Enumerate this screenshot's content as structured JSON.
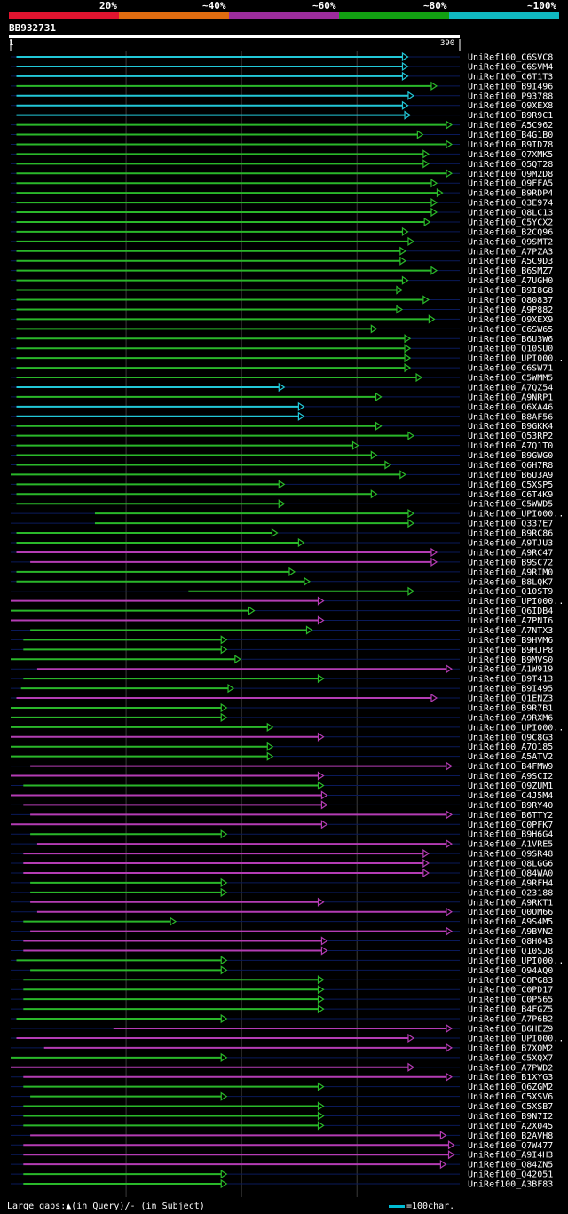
{
  "legend": {
    "segments": [
      {
        "label": "20%",
        "color": "#e0142f"
      },
      {
        "label": "~40%",
        "color": "#e06c10"
      },
      {
        "label": "~60%",
        "color": "#9c2c9c"
      },
      {
        "label": "~80%",
        "color": "#12a012"
      },
      {
        "label": "~100%",
        "color": "#10b8c0"
      }
    ]
  },
  "query": {
    "id": "BB932731",
    "start": "1",
    "end": "390"
  },
  "footer": {
    "gaps_legend": "Large gaps:▲(in Query)/- (in Subject)",
    "scale_legend": "=100char."
  },
  "colors": {
    "cyan": "#22c8d8",
    "green": "#2ab82a",
    "magenta": "#b43cb4",
    "track": "#0a1a5a",
    "grid": "#3a3a3a"
  },
  "chart_data": {
    "type": "alignment",
    "query_length": 390,
    "gap_markers": {
      "query": "▲",
      "subject": "-"
    },
    "hits": [
      {
        "name": "UniRef100_C6SVC8",
        "start": 6,
        "end": 345,
        "color": "cyan"
      },
      {
        "name": "UniRef100_C6SVM4",
        "start": 6,
        "end": 345,
        "color": "cyan"
      },
      {
        "name": "UniRef100_C6T1T3",
        "start": 6,
        "end": 345,
        "color": "cyan"
      },
      {
        "name": "UniRef100_B9I496",
        "start": 6,
        "end": 370,
        "color": "green"
      },
      {
        "name": "UniRef100_P93788",
        "start": 6,
        "end": 350,
        "color": "cyan"
      },
      {
        "name": "UniRef100_Q9XEX8",
        "start": 6,
        "end": 345,
        "color": "cyan"
      },
      {
        "name": "UniRef100_B9R9C1",
        "start": 6,
        "end": 347,
        "color": "cyan"
      },
      {
        "name": "UniRef100_A5C962",
        "start": 6,
        "end": 383,
        "color": "green"
      },
      {
        "name": "UniRef100_B4G1B0",
        "start": 6,
        "end": 358,
        "color": "green"
      },
      {
        "name": "UniRef100_B9ID78",
        "start": 6,
        "end": 383,
        "color": "green"
      },
      {
        "name": "UniRef100_Q7XMK5",
        "start": 6,
        "end": 363,
        "color": "green"
      },
      {
        "name": "UniRef100_Q5QT28",
        "start": 6,
        "end": 363,
        "color": "green"
      },
      {
        "name": "UniRef100_Q9M2D8",
        "start": 6,
        "end": 383,
        "color": "green"
      },
      {
        "name": "UniRef100_Q9FFA5",
        "start": 6,
        "end": 370,
        "color": "green"
      },
      {
        "name": "UniRef100_B9RDP4",
        "start": 6,
        "end": 375,
        "color": "green"
      },
      {
        "name": "UniRef100_Q3E974",
        "start": 6,
        "end": 370,
        "color": "green"
      },
      {
        "name": "UniRef100_Q8LC13",
        "start": 6,
        "end": 370,
        "color": "green"
      },
      {
        "name": "UniRef100_C5YCX2",
        "start": 6,
        "end": 364,
        "color": "green"
      },
      {
        "name": "UniRef100_B2CQ96",
        "start": 6,
        "end": 345,
        "color": "green"
      },
      {
        "name": "UniRef100_Q9SMT2",
        "start": 6,
        "end": 350,
        "color": "green"
      },
      {
        "name": "UniRef100_A7PZA3",
        "start": 6,
        "end": 343,
        "color": "green"
      },
      {
        "name": "UniRef100_A5C9D3",
        "start": 6,
        "end": 343,
        "color": "green"
      },
      {
        "name": "UniRef100_B6SMZ7",
        "start": 6,
        "end": 370,
        "color": "green"
      },
      {
        "name": "UniRef100_A7UGH0",
        "start": 6,
        "end": 345,
        "color": "green"
      },
      {
        "name": "UniRef100_B9I8G8",
        "start": 6,
        "end": 340,
        "color": "green"
      },
      {
        "name": "UniRef100_O80837",
        "start": 6,
        "end": 363,
        "color": "green"
      },
      {
        "name": "UniRef100_A9P882",
        "start": 6,
        "end": 340,
        "color": "green"
      },
      {
        "name": "UniRef100_Q9XEX9",
        "start": 6,
        "end": 368,
        "color": "green"
      },
      {
        "name": "UniRef100_C6SW65",
        "start": 6,
        "end": 318,
        "color": "green"
      },
      {
        "name": "UniRef100_B6U3W6",
        "start": 6,
        "end": 347,
        "color": "green"
      },
      {
        "name": "UniRef100_Q10SU0",
        "start": 6,
        "end": 347,
        "color": "green"
      },
      {
        "name": "UniRef100_UPI000..",
        "start": 6,
        "end": 347,
        "color": "green"
      },
      {
        "name": "UniRef100_C6SW71",
        "start": 6,
        "end": 347,
        "color": "green"
      },
      {
        "name": "UniRef100_C5WMM5",
        "start": 6,
        "end": 357,
        "color": "green"
      },
      {
        "name": "UniRef100_A7QZ54",
        "start": 6,
        "end": 238,
        "color": "cyan"
      },
      {
        "name": "UniRef100_A9NRP1",
        "start": 6,
        "end": 322,
        "color": "green"
      },
      {
        "name": "UniRef100_Q6XA46",
        "start": 6,
        "end": 255,
        "color": "cyan"
      },
      {
        "name": "UniRef100_B8AF56",
        "start": 6,
        "end": 255,
        "color": "cyan"
      },
      {
        "name": "UniRef100_B9GKK4",
        "start": 6,
        "end": 322,
        "color": "green"
      },
      {
        "name": "UniRef100_Q53RP2",
        "start": 6,
        "end": 350,
        "color": "green"
      },
      {
        "name": "UniRef100_A7Q1T0",
        "start": 6,
        "end": 302,
        "color": "green"
      },
      {
        "name": "UniRef100_B9GWG0",
        "start": 6,
        "end": 318,
        "color": "green"
      },
      {
        "name": "UniRef100_Q6H7R8",
        "start": 6,
        "end": 330,
        "color": "green"
      },
      {
        "name": "UniRef100_B6U3A9",
        "start": 1,
        "end": 343,
        "color": "green"
      },
      {
        "name": "UniRef100_C5XSP5",
        "start": 6,
        "end": 238,
        "color": "green"
      },
      {
        "name": "UniRef100_C6T4K9",
        "start": 6,
        "end": 318,
        "color": "green"
      },
      {
        "name": "UniRef100_C5WWD5",
        "start": 6,
        "end": 238,
        "color": "green"
      },
      {
        "name": "UniRef100_UPI000..",
        "start": 74,
        "end": 350,
        "color": "green"
      },
      {
        "name": "UniRef100_Q337E7",
        "start": 74,
        "end": 350,
        "color": "green"
      },
      {
        "name": "UniRef100_B9RC86",
        "start": 6,
        "end": 232,
        "color": "green"
      },
      {
        "name": "UniRef100_A9TJU3",
        "start": 6,
        "end": 255,
        "color": "green"
      },
      {
        "name": "UniRef100_A9RC47",
        "start": 6,
        "end": 370,
        "color": "magenta"
      },
      {
        "name": "UniRef100_B9SC72",
        "start": 18,
        "end": 370,
        "color": "magenta"
      },
      {
        "name": "UniRef100_A9RIM0",
        "start": 6,
        "end": 247,
        "color": "green"
      },
      {
        "name": "UniRef100_B8LQK7",
        "start": 6,
        "end": 260,
        "color": "green"
      },
      {
        "name": "UniRef100_Q10ST9",
        "start": 155,
        "end": 350,
        "color": "green"
      },
      {
        "name": "UniRef100_UPI000..",
        "start": 1,
        "end": 272,
        "color": "magenta"
      },
      {
        "name": "UniRef100_Q6IDB4",
        "start": 1,
        "end": 212,
        "color": "green"
      },
      {
        "name": "UniRef100_A7PNI6",
        "start": 1,
        "end": 272,
        "color": "magenta"
      },
      {
        "name": "UniRef100_A7NTX3",
        "start": 18,
        "end": 262,
        "color": "green"
      },
      {
        "name": "UniRef100_B9HVM6",
        "start": 12,
        "end": 188,
        "color": "green"
      },
      {
        "name": "UniRef100_B9HJP8",
        "start": 12,
        "end": 188,
        "color": "green"
      },
      {
        "name": "UniRef100_B9MVS0",
        "start": 1,
        "end": 200,
        "color": "green"
      },
      {
        "name": "UniRef100_A1W919",
        "start": 24,
        "end": 383,
        "color": "magenta"
      },
      {
        "name": "UniRef100_B9T413",
        "start": 12,
        "end": 272,
        "color": "green"
      },
      {
        "name": "UniRef100_B9I495",
        "start": 10,
        "end": 194,
        "color": "green"
      },
      {
        "name": "UniRef100_Q1ENZ3",
        "start": 6,
        "end": 370,
        "color": "magenta"
      },
      {
        "name": "UniRef100_B9R7B1",
        "start": 1,
        "end": 188,
        "color": "green"
      },
      {
        "name": "UniRef100_A9RXM6",
        "start": 1,
        "end": 188,
        "color": "green"
      },
      {
        "name": "UniRef100_UPI000..",
        "start": 1,
        "end": 228,
        "color": "green"
      },
      {
        "name": "UniRef100_Q9C8G3",
        "start": 1,
        "end": 272,
        "color": "magenta"
      },
      {
        "name": "UniRef100_A7Q185",
        "start": 1,
        "end": 228,
        "color": "green"
      },
      {
        "name": "UniRef100_A5ATV2",
        "start": 1,
        "end": 228,
        "color": "green"
      },
      {
        "name": "UniRef100_B4FMW9",
        "start": 18,
        "end": 383,
        "color": "magenta"
      },
      {
        "name": "UniRef100_A9SCI2",
        "start": 1,
        "end": 272,
        "color": "magenta"
      },
      {
        "name": "UniRef100_Q9ZUM1",
        "start": 12,
        "end": 272,
        "color": "green"
      },
      {
        "name": "UniRef100_C4J5M4",
        "start": 1,
        "end": 275,
        "color": "magenta"
      },
      {
        "name": "UniRef100_B9RY40",
        "start": 12,
        "end": 275,
        "color": "magenta"
      },
      {
        "name": "UniRef100_B6TTY2",
        "start": 18,
        "end": 383,
        "color": "magenta"
      },
      {
        "name": "UniRef100_C0PFK7",
        "start": 1,
        "end": 275,
        "color": "magenta"
      },
      {
        "name": "UniRef100_B9H6G4",
        "start": 18,
        "end": 188,
        "color": "green"
      },
      {
        "name": "UniRef100_A1VRE5",
        "start": 24,
        "end": 383,
        "color": "magenta"
      },
      {
        "name": "UniRef100_Q9SR48",
        "start": 12,
        "end": 363,
        "color": "magenta"
      },
      {
        "name": "UniRef100_Q8LGG6",
        "start": 12,
        "end": 363,
        "color": "magenta"
      },
      {
        "name": "UniRef100_Q84WA0",
        "start": 12,
        "end": 363,
        "color": "magenta"
      },
      {
        "name": "UniRef100_A9RFH4",
        "start": 18,
        "end": 188,
        "color": "green"
      },
      {
        "name": "UniRef100_O23188",
        "start": 18,
        "end": 188,
        "color": "green"
      },
      {
        "name": "UniRef100_A9RKT1",
        "start": 18,
        "end": 272,
        "color": "magenta"
      },
      {
        "name": "UniRef100_Q0OM66",
        "start": 24,
        "end": 383,
        "color": "magenta"
      },
      {
        "name": "UniRef100_A9S4M5",
        "start": 12,
        "end": 144,
        "color": "green"
      },
      {
        "name": "UniRef100_A9BVN2",
        "start": 18,
        "end": 383,
        "color": "magenta"
      },
      {
        "name": "UniRef100_Q8H043",
        "start": 12,
        "end": 275,
        "color": "magenta"
      },
      {
        "name": "UniRef100_Q10SJ8",
        "start": 12,
        "end": 275,
        "color": "magenta"
      },
      {
        "name": "UniRef100_UPI000..",
        "start": 6,
        "end": 188,
        "color": "green"
      },
      {
        "name": "UniRef100_Q94AQ0",
        "start": 18,
        "end": 188,
        "color": "green"
      },
      {
        "name": "UniRef100_C0PG83",
        "start": 12,
        "end": 272,
        "color": "green"
      },
      {
        "name": "UniRef100_C0PD17",
        "start": 12,
        "end": 272,
        "color": "green"
      },
      {
        "name": "UniRef100_C0P565",
        "start": 12,
        "end": 272,
        "color": "green"
      },
      {
        "name": "UniRef100_B4FGZ5",
        "start": 12,
        "end": 272,
        "color": "green"
      },
      {
        "name": "UniRef100_A7P6B2",
        "start": 6,
        "end": 188,
        "color": "green"
      },
      {
        "name": "UniRef100_B6HEZ9",
        "start": 90,
        "end": 383,
        "color": "magenta"
      },
      {
        "name": "UniRef100_UPI000..",
        "start": 6,
        "end": 350,
        "color": "magenta"
      },
      {
        "name": "UniRef100_B7XOM2",
        "start": 30,
        "end": 383,
        "color": "magenta"
      },
      {
        "name": "UniRef100_C5XQX7",
        "start": 1,
        "end": 188,
        "color": "green"
      },
      {
        "name": "UniRef100_A7PWD2",
        "start": 1,
        "end": 350,
        "color": "magenta"
      },
      {
        "name": "UniRef100_B1XYG3",
        "start": 12,
        "end": 383,
        "color": "magenta"
      },
      {
        "name": "UniRef100_Q6ZGM2",
        "start": 12,
        "end": 272,
        "color": "green"
      },
      {
        "name": "UniRef100_C5XSV6",
        "start": 18,
        "end": 188,
        "color": "green"
      },
      {
        "name": "UniRef100_C5XSB7",
        "start": 12,
        "end": 272,
        "color": "green"
      },
      {
        "name": "UniRef100_B9N7I2",
        "start": 12,
        "end": 272,
        "color": "green"
      },
      {
        "name": "UniRef100_A2X045",
        "start": 12,
        "end": 272,
        "color": "green"
      },
      {
        "name": "UniRef100_B2AVH8",
        "start": 18,
        "end": 378,
        "color": "magenta"
      },
      {
        "name": "UniRef100_Q7W477",
        "start": 12,
        "end": 385,
        "color": "magenta"
      },
      {
        "name": "UniRef100_A9I4H3",
        "start": 12,
        "end": 385,
        "color": "magenta"
      },
      {
        "name": "UniRef100_Q84ZN5",
        "start": 12,
        "end": 378,
        "color": "magenta"
      },
      {
        "name": "UniRef100_Q42051",
        "start": 12,
        "end": 188,
        "color": "green"
      },
      {
        "name": "UniRef100_A3BF83",
        "start": 12,
        "end": 188,
        "color": "green"
      }
    ]
  }
}
